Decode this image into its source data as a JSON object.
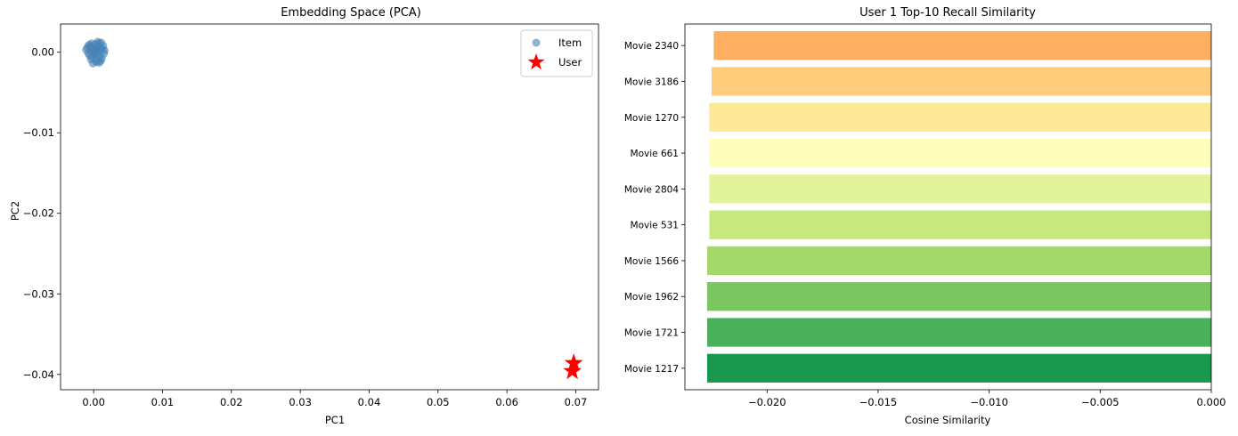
{
  "chart_data": [
    {
      "type": "scatter",
      "title": "Embedding Space (PCA)",
      "xlabel": "PC1",
      "ylabel": "PC2",
      "xlim": [
        -0.0048,
        0.0733
      ],
      "ylim": [
        -0.0419,
        0.0035
      ],
      "xticks": [
        0.0,
        0.01,
        0.02,
        0.03,
        0.04,
        0.05,
        0.06,
        0.07
      ],
      "xtick_labels": [
        "0.00",
        "0.01",
        "0.02",
        "0.03",
        "0.04",
        "0.05",
        "0.06",
        "0.07"
      ],
      "yticks": [
        0.0,
        -0.01,
        -0.02,
        -0.03,
        -0.04
      ],
      "ytick_labels": [
        "0.00",
        "−0.01",
        "−0.02",
        "−0.03",
        "−0.04"
      ],
      "legend_position": "top-right",
      "series": [
        {
          "name": "Item",
          "marker": "circle",
          "color": "#4682b4",
          "points": [
            [
              0.0,
              0.0
            ],
            [
              0.0003,
              0.0004
            ],
            [
              -0.0004,
              0.0002
            ],
            [
              0.0006,
              -0.0003
            ],
            [
              -0.0002,
              -0.0006
            ],
            [
              0.001,
              0.0005
            ],
            [
              -0.0008,
              -0.0001
            ],
            [
              0.0002,
              0.001
            ],
            [
              0.0008,
              0.0011
            ],
            [
              -0.0005,
              0.0008
            ],
            [
              0.0012,
              -0.0008
            ],
            [
              0.0004,
              -0.0012
            ],
            [
              -0.0001,
              -0.0014
            ],
            [
              0.0016,
              0.0002
            ],
            [
              -0.0011,
              0.0003
            ],
            [
              0.0005,
              0.0006
            ],
            [
              0.0009,
              -0.0005
            ],
            [
              -0.0003,
              0.0011
            ],
            [
              0.0014,
              0.0008
            ],
            [
              0.0001,
              -0.0003
            ],
            [
              0.0007,
              0.0001
            ],
            [
              -0.0006,
              -0.0004
            ],
            [
              0.0011,
              0.0012
            ],
            [
              0.0003,
              -0.0009
            ],
            [
              -0.0009,
              0.0006
            ],
            [
              0.0015,
              -0.0002
            ],
            [
              0.0006,
              0.0013
            ],
            [
              -0.0002,
              0.0005
            ],
            [
              0.001,
              -0.0011
            ],
            [
              0.0002,
              0.0001
            ],
            [
              -0.0007,
              0.0009
            ],
            [
              0.0013,
              0.0004
            ],
            [
              0.0004,
              0.0002
            ],
            [
              0.0008,
              -0.0013
            ],
            [
              -0.0004,
              -0.0009
            ]
          ]
        },
        {
          "name": "User",
          "marker": "star",
          "color": "#ff0000",
          "points": [
            [
              0.0697,
              -0.0386
            ],
            [
              0.0695,
              -0.0396
            ]
          ]
        }
      ]
    },
    {
      "type": "bar",
      "orientation": "horizontal",
      "title": "User 1 Top-10 Recall Similarity",
      "xlabel": "Cosine Similarity",
      "ylabel": "",
      "xlim": [
        -0.0237,
        0.0
      ],
      "xticks": [
        -0.02,
        -0.015,
        -0.01,
        -0.005,
        0.0
      ],
      "xtick_labels": [
        "−0.020",
        "−0.015",
        "−0.010",
        "−0.005",
        "0.000"
      ],
      "categories": [
        "Movie 2340",
        "Movie 3186",
        "Movie 1270",
        "Movie 661",
        "Movie 2804",
        "Movie 531",
        "Movie 1566",
        "Movie 1962",
        "Movie 1721",
        "Movie 1217"
      ],
      "values": [
        -0.0224,
        -0.0225,
        -0.0226,
        -0.0226,
        -0.0226,
        -0.0226,
        -0.0227,
        -0.0227,
        -0.0227,
        -0.0227
      ],
      "colors": [
        "#fdae61",
        "#fecc7b",
        "#fee999",
        "#fefebd",
        "#e3f399",
        "#c7e77f",
        "#a5d86a",
        "#7bc661",
        "#4bb05c",
        "#1a9850"
      ]
    }
  ]
}
